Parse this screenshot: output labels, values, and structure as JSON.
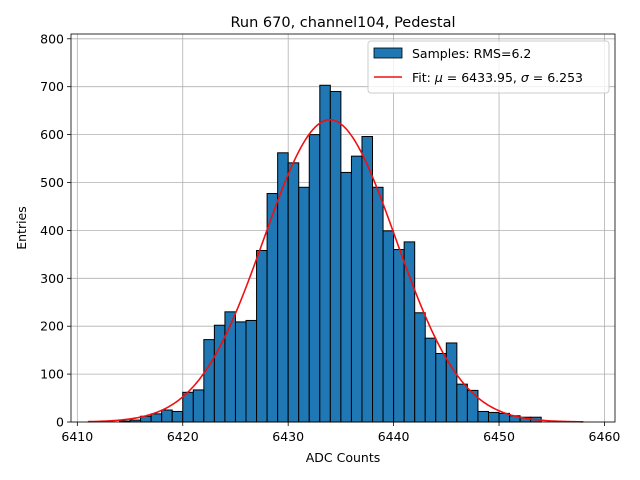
{
  "chart_data": {
    "type": "bar",
    "title": "Run 670, channel104, Pedestal",
    "xlabel": "ADC Counts",
    "ylabel": "Entries",
    "xlim": [
      6409.4,
      6461.0
    ],
    "ylim": [
      0,
      810
    ],
    "xticks": [
      6410,
      6420,
      6430,
      6440,
      6450,
      6460
    ],
    "yticks": [
      0,
      100,
      200,
      300,
      400,
      500,
      600,
      700,
      800
    ],
    "grid": true,
    "legend_position": "top-right",
    "colors": {
      "bar_fill": "#1f77b4",
      "bar_edge": "#000000",
      "fit_line": "#ee1111",
      "grid": "#b0b0b0"
    },
    "histogram": {
      "name": "Samples: RMS=6.2",
      "bin_width": 1,
      "bin_edges_start": 6414,
      "counts": [
        2,
        4,
        12,
        17,
        25,
        22,
        62,
        67,
        172,
        202,
        230,
        209,
        212,
        358,
        477,
        562,
        541,
        490,
        600,
        703,
        690,
        521,
        555,
        596,
        490,
        399,
        360,
        376,
        228,
        175,
        143,
        165,
        79,
        66,
        22,
        20,
        18,
        13,
        10,
        10
      ]
    },
    "fit": {
      "name_prefix": "Fit: ",
      "mu_symbol": "μ",
      "mu_value": " = 6433.95, ",
      "sigma_symbol": "σ",
      "sigma_value": " = 6.253",
      "mu": 6433.95,
      "sigma": 6.253,
      "amplitude": 631,
      "x_range": [
        6411,
        6458
      ]
    }
  }
}
